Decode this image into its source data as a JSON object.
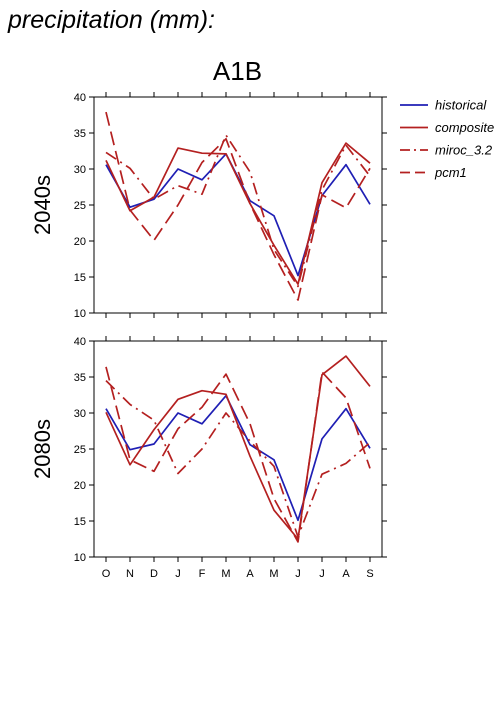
{
  "header": {
    "title": "precipitation (mm):",
    "scenario": "A1B"
  },
  "chart_data": {
    "type": "line",
    "categories": [
      "O",
      "N",
      "D",
      "J",
      "F",
      "M",
      "A",
      "M",
      "J",
      "J",
      "A",
      "S"
    ],
    "ylim": [
      10,
      40
    ],
    "yticks": [
      10,
      15,
      20,
      25,
      30,
      35,
      40
    ],
    "grid": false,
    "legend_placement": "right",
    "legend": [
      "historical",
      "composite",
      "miroc_3.2",
      "pcm1"
    ],
    "panels": [
      {
        "label": "2040s",
        "series": [
          {
            "name": "historical",
            "color": "#1f1fb4",
            "dash": "solid",
            "values": [
              30.6,
              24.7,
              25.8,
              30.0,
              28.5,
              32.1,
              25.6,
              23.5,
              15.2,
              26.3,
              30.6,
              25.1
            ]
          },
          {
            "name": "composite",
            "color": "#b42020",
            "dash": "solid",
            "values": [
              31.2,
              24.2,
              26.1,
              32.9,
              32.2,
              32.1,
              25.2,
              19.4,
              14.0,
              28.1,
              33.6,
              30.8
            ]
          },
          {
            "name": "miroc_3.2",
            "color": "#b42020",
            "dash": "dashdot",
            "values": [
              32.3,
              30.1,
              25.8,
              27.7,
              26.5,
              34.7,
              29.6,
              18.8,
              13.7,
              27.1,
              33.3,
              29.0
            ]
          },
          {
            "name": "pcm1",
            "color": "#b42020",
            "dash": "dash",
            "values": [
              37.9,
              24.3,
              20.1,
              25.0,
              30.9,
              34.2,
              25.2,
              18.1,
              11.8,
              26.4,
              24.6,
              30.1
            ]
          }
        ]
      },
      {
        "label": "2080s",
        "series": [
          {
            "name": "historical",
            "color": "#1f1fb4",
            "dash": "solid",
            "values": [
              30.6,
              24.9,
              25.7,
              30.0,
              28.5,
              32.4,
              25.6,
              23.5,
              15.1,
              26.4,
              30.6,
              25.1
            ]
          },
          {
            "name": "composite",
            "color": "#b42020",
            "dash": "solid",
            "values": [
              30.1,
              22.8,
              27.7,
              31.9,
              33.1,
              32.6,
              24.0,
              16.5,
              12.5,
              35.3,
              37.9,
              33.7
            ]
          },
          {
            "name": "miroc_3.2",
            "color": "#b42020",
            "dash": "dashdot",
            "values": [
              34.5,
              31.2,
              29.0,
              21.6,
              25.0,
              30.0,
              26.1,
              22.6,
              12.8,
              21.5,
              23.0,
              25.9
            ]
          },
          {
            "name": "pcm1",
            "color": "#b42020",
            "dash": "dash",
            "values": [
              36.4,
              23.5,
              21.9,
              27.8,
              30.8,
              35.4,
              28.5,
              18.1,
              12.1,
              35.7,
              32.1,
              22.3
            ]
          }
        ]
      }
    ]
  }
}
